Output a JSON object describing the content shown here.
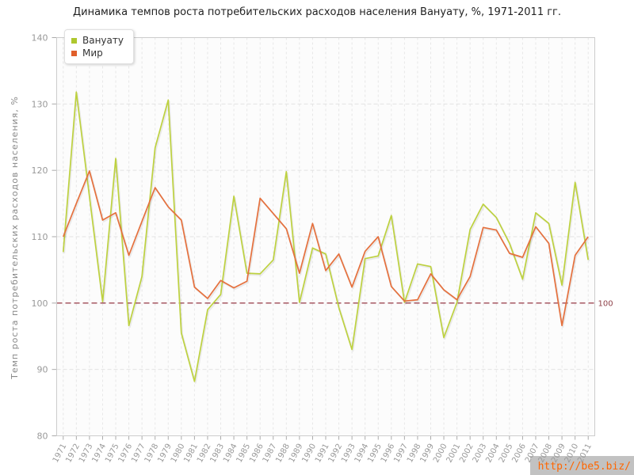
{
  "title": "Динамика темпов роста потребительских расходов населения Вануату, %, 1971-2011 гг.",
  "legend": {
    "items": [
      {
        "label": "Вануату",
        "color": "#aec72e"
      },
      {
        "label": "Мир",
        "color": "#e05f2a"
      }
    ]
  },
  "watermark": {
    "text": "http://be5.biz/"
  },
  "chart_data": {
    "type": "line",
    "title": "Динамика темпов роста потребительских расходов населения Вануату, %, 1971-2011 гг.",
    "xlabel": "",
    "ylabel": "Темп роста потребительских расходов населения, %",
    "ylim": [
      80,
      140
    ],
    "yticks": [
      80,
      90,
      100,
      110,
      120,
      130,
      140
    ],
    "grid": true,
    "legend_position": "top-left",
    "baseline": {
      "value": 100,
      "label": "100",
      "color": "#9e4753",
      "label_color": "#8d3f47"
    },
    "x": [
      1971,
      1972,
      1973,
      1974,
      1975,
      1976,
      1977,
      1978,
      1979,
      1980,
      1981,
      1982,
      1983,
      1984,
      1985,
      1986,
      1987,
      1988,
      1989,
      1990,
      1991,
      1992,
      1993,
      1994,
      1995,
      1996,
      1997,
      1998,
      1999,
      2000,
      2001,
      2002,
      2003,
      2004,
      2005,
      2006,
      2007,
      2008,
      2009,
      2010,
      2011
    ],
    "series": [
      {
        "name": "Вануату",
        "color": "#bdd13f",
        "values": [
          107.7,
          131.8,
          116.0,
          100.2,
          121.8,
          96.6,
          104.0,
          123.4,
          130.6,
          95.5,
          88.2,
          99.0,
          101.3,
          116.1,
          104.5,
          104.4,
          106.5,
          119.8,
          100.1,
          108.3,
          107.4,
          99.3,
          93.0,
          106.7,
          107.1,
          113.2,
          100.1,
          105.9,
          105.5,
          94.8,
          100.1,
          111.1,
          114.9,
          112.9,
          109.0,
          103.6,
          113.6,
          112.0,
          102.7,
          118.2,
          106.5
        ]
      },
      {
        "name": "Мир",
        "color": "#e5703d",
        "values": [
          110.0,
          115.0,
          119.9,
          112.5,
          113.6,
          107.2,
          112.3,
          117.4,
          114.5,
          112.5,
          102.4,
          100.7,
          103.4,
          102.3,
          103.3,
          115.8,
          113.5,
          111.2,
          104.5,
          112.0,
          104.9,
          107.4,
          102.4,
          107.8,
          110.0,
          102.5,
          100.3,
          100.5,
          104.4,
          102.0,
          100.5,
          104.0,
          111.4,
          111.0,
          107.5,
          106.9,
          111.5,
          109.0,
          96.6,
          107.2,
          110.0
        ]
      }
    ]
  }
}
